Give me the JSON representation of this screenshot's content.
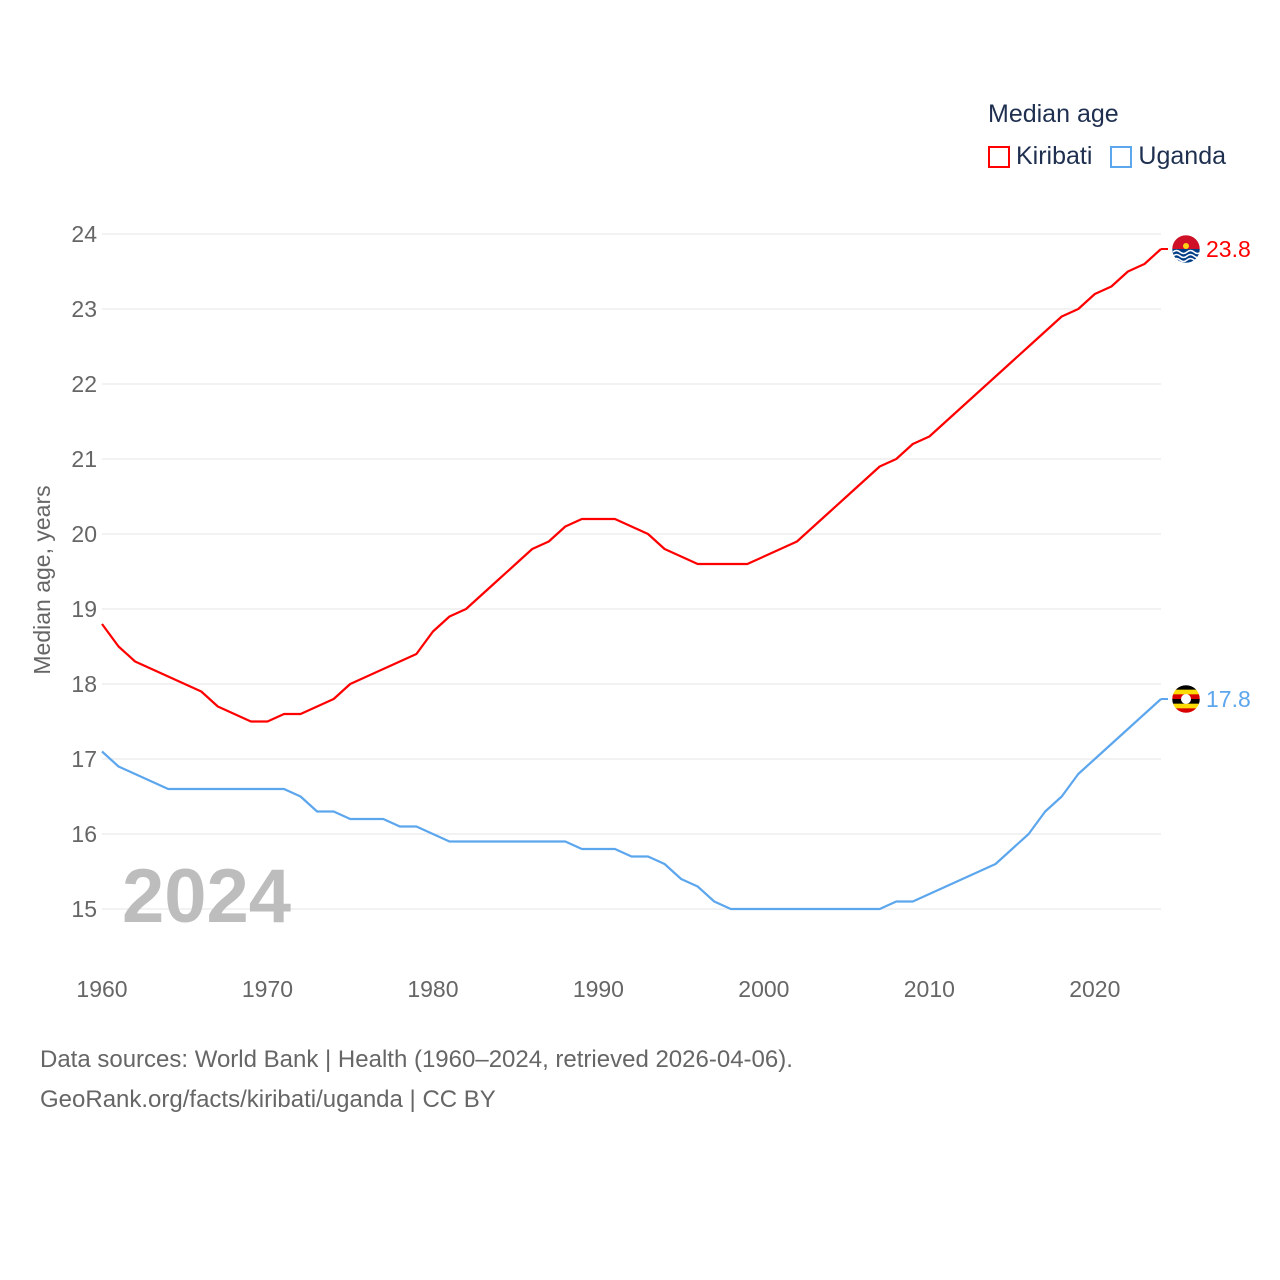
{
  "chart_data": {
    "type": "line",
    "title": "",
    "legend_title": "Median age",
    "legend_position": "top-right",
    "xlabel": "",
    "ylabel": "Median age, years",
    "xlim": [
      1960,
      2024
    ],
    "ylim": [
      15,
      24
    ],
    "yticks": [
      "15",
      "16",
      "17",
      "18",
      "19",
      "20",
      "21",
      "22",
      "23",
      "24"
    ],
    "xticks": [
      "1960",
      "1970",
      "1980",
      "1990",
      "2000",
      "2010",
      "2020"
    ],
    "grid": true,
    "year_watermark": "2024",
    "x": [
      1960,
      1961,
      1962,
      1963,
      1964,
      1965,
      1966,
      1967,
      1968,
      1969,
      1970,
      1971,
      1972,
      1973,
      1974,
      1975,
      1976,
      1977,
      1978,
      1979,
      1980,
      1981,
      1982,
      1983,
      1984,
      1985,
      1986,
      1987,
      1988,
      1989,
      1990,
      1991,
      1992,
      1993,
      1994,
      1995,
      1996,
      1997,
      1998,
      1999,
      2000,
      2001,
      2002,
      2003,
      2004,
      2005,
      2006,
      2007,
      2008,
      2009,
      2010,
      2011,
      2012,
      2013,
      2014,
      2015,
      2016,
      2017,
      2018,
      2019,
      2020,
      2021,
      2022,
      2023,
      2024
    ],
    "series": [
      {
        "name": "Kiribati",
        "color": "#ff0000",
        "end_label": "23.8",
        "values": [
          18.8,
          18.5,
          18.3,
          18.2,
          18.1,
          18.0,
          17.9,
          17.7,
          17.6,
          17.5,
          17.5,
          17.6,
          17.6,
          17.7,
          17.8,
          18.0,
          18.1,
          18.2,
          18.3,
          18.4,
          18.7,
          18.9,
          19.0,
          19.2,
          19.4,
          19.6,
          19.8,
          19.9,
          20.1,
          20.2,
          20.2,
          20.2,
          20.1,
          20.0,
          19.8,
          19.7,
          19.6,
          19.6,
          19.6,
          19.6,
          19.7,
          19.8,
          19.9,
          20.1,
          20.3,
          20.5,
          20.7,
          20.9,
          21.0,
          21.2,
          21.3,
          21.5,
          21.7,
          21.9,
          22.1,
          22.3,
          22.5,
          22.7,
          22.9,
          23.0,
          23.2,
          23.3,
          23.5,
          23.6,
          23.8
        ]
      },
      {
        "name": "Uganda",
        "color": "#5ca6ee",
        "end_label": "17.8",
        "values": [
          17.1,
          16.9,
          16.8,
          16.7,
          16.6,
          16.6,
          16.6,
          16.6,
          16.6,
          16.6,
          16.6,
          16.6,
          16.5,
          16.3,
          16.3,
          16.2,
          16.2,
          16.2,
          16.1,
          16.1,
          16.0,
          15.9,
          15.9,
          15.9,
          15.9,
          15.9,
          15.9,
          15.9,
          15.9,
          15.8,
          15.8,
          15.8,
          15.7,
          15.7,
          15.6,
          15.4,
          15.3,
          15.1,
          15.0,
          15.0,
          15.0,
          15.0,
          15.0,
          15.0,
          15.0,
          15.0,
          15.0,
          15.0,
          15.1,
          15.1,
          15.2,
          15.3,
          15.4,
          15.5,
          15.6,
          15.8,
          16.0,
          16.3,
          16.5,
          16.8,
          17.0,
          17.2,
          17.4,
          17.6,
          17.8
        ]
      }
    ]
  },
  "footer": {
    "source_line": "Data sources: World Bank | Health (1960–2024, retrieved 2026-04-06).",
    "attribution_line": "GeoRank.org/facts/kiribati/uganda | CC BY"
  }
}
